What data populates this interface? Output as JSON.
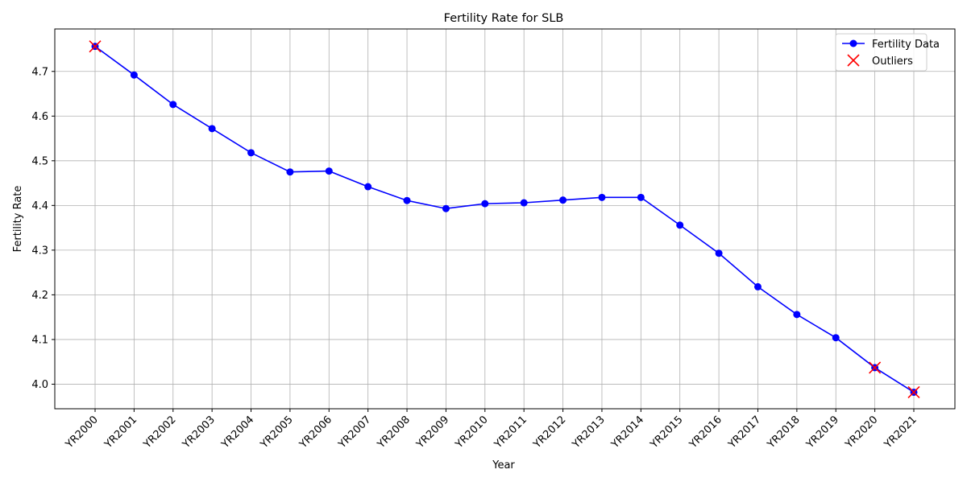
{
  "chart_data": {
    "type": "line",
    "title": "Fertility Rate for SLB",
    "xlabel": "Year",
    "ylabel": "Fertility Rate",
    "categories": [
      "YR2000",
      "YR2001",
      "YR2002",
      "YR2003",
      "YR2004",
      "YR2005",
      "YR2006",
      "YR2007",
      "YR2008",
      "YR2009",
      "YR2010",
      "YR2011",
      "YR2012",
      "YR2013",
      "YR2014",
      "YR2015",
      "YR2016",
      "YR2017",
      "YR2018",
      "YR2019",
      "YR2020",
      "YR2021"
    ],
    "series": [
      {
        "name": "Fertility Data",
        "color": "#0000ff",
        "marker": "circle",
        "values": [
          4.756,
          4.692,
          4.626,
          4.572,
          4.518,
          4.475,
          4.477,
          4.442,
          4.411,
          4.393,
          4.404,
          4.406,
          4.412,
          4.418,
          4.418,
          4.356,
          4.293,
          4.218,
          4.156,
          4.104,
          4.037,
          3.982
        ]
      },
      {
        "name": "Outliers",
        "color": "#ff0000",
        "marker": "x",
        "points": [
          {
            "x": "YR2000",
            "y": 4.756
          },
          {
            "x": "YR2020",
            "y": 4.037
          },
          {
            "x": "YR2021",
            "y": 3.982
          }
        ]
      }
    ],
    "ylim": [
      3.945,
      4.795
    ],
    "yticks": [
      4.0,
      4.1,
      4.2,
      4.3,
      4.4,
      4.5,
      4.6,
      4.7
    ],
    "grid": true,
    "legend_position": "top-right"
  }
}
